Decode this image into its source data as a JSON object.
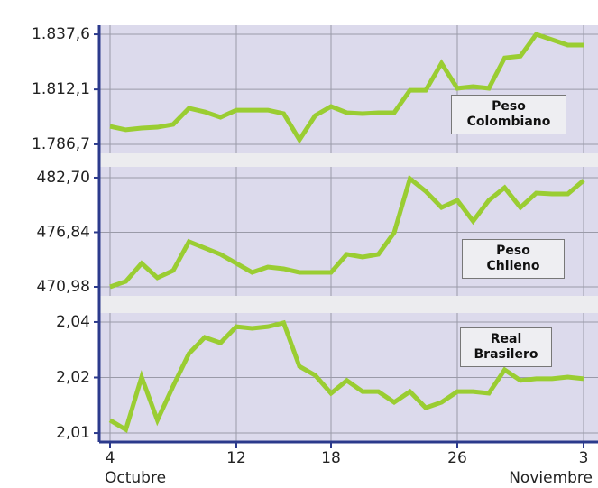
{
  "chart_data": [
    {
      "type": "line",
      "series": [
        {
          "name": "Peso Colombiano",
          "color": "#9acd32",
          "values": [
            1795.0,
            1793.4,
            1794.2,
            1794.6,
            1795.9,
            1803.4,
            1801.7,
            1799.2,
            1802.5,
            1802.5,
            1802.5,
            1800.9,
            1788.8,
            1800.0,
            1804.2,
            1801.3,
            1800.9,
            1801.3,
            1801.3,
            1811.7,
            1811.7,
            1824.2,
            1812.6,
            1813.4,
            1812.6,
            1826.7,
            1827.5,
            1837.6,
            1835.1,
            1832.6,
            1832.6
          ]
        }
      ],
      "ylim": [
        1782.5,
        1841.8
      ],
      "yticks": [
        {
          "value": 1786.7,
          "label": "1.786,7"
        },
        {
          "value": 1812.1,
          "label": "1.812,1"
        },
        {
          "value": 1837.6,
          "label": "1.837,6"
        }
      ],
      "grid": true
    },
    {
      "type": "line",
      "series": [
        {
          "name": "Peso Chileno",
          "color": "#9acd32",
          "values": [
            470.98,
            471.56,
            473.5,
            471.95,
            472.73,
            475.83,
            475.15,
            474.47,
            473.5,
            472.53,
            473.11,
            472.92,
            472.53,
            472.53,
            472.53,
            474.47,
            474.18,
            474.47,
            476.8,
            482.6,
            481.24,
            479.5,
            480.27,
            478.04,
            480.27,
            481.63,
            479.5,
            481.05,
            480.95,
            480.95,
            482.41
          ]
        }
      ],
      "ylim": [
        470.01,
        483.86
      ],
      "yticks": [
        {
          "value": 470.98,
          "label": "470,98"
        },
        {
          "value": 476.84,
          "label": "476,84"
        },
        {
          "value": 482.7,
          "label": "482,70"
        }
      ],
      "grid": true
    },
    {
      "type": "line",
      "series": [
        {
          "name": "Real Brasilero",
          "color": "#9acd32",
          "values": [
            2.013,
            2.0108,
            2.0231,
            2.013,
            2.021,
            2.0286,
            2.0324,
            2.0311,
            2.0349,
            2.0345,
            2.0349,
            2.0358,
            2.0256,
            2.0235,
            2.0193,
            2.0223,
            2.0197,
            2.0197,
            2.0172,
            2.0197,
            2.0159,
            2.0172,
            2.0197,
            2.0197,
            2.0193,
            2.0248,
            2.0223,
            2.0227,
            2.0227,
            2.0231,
            2.0227
          ]
        }
      ],
      "ylim": [
        2.0079,
        2.0381
      ],
      "yticks": [
        {
          "value": 2.01,
          "label": "2,01"
        },
        {
          "value": 2.023,
          "label": "2,02"
        },
        {
          "value": 2.036,
          "label": "2,04"
        }
      ],
      "grid": true,
      "categories": [
        "4",
        null,
        null,
        null,
        null,
        null,
        null,
        null,
        "12",
        null,
        null,
        null,
        null,
        null,
        "18",
        null,
        null,
        null,
        null,
        null,
        null,
        null,
        "26",
        null,
        null,
        null,
        null,
        null,
        null,
        null,
        "3"
      ],
      "month_labels": [
        "Octubre",
        "Noviembre"
      ]
    }
  ]
}
